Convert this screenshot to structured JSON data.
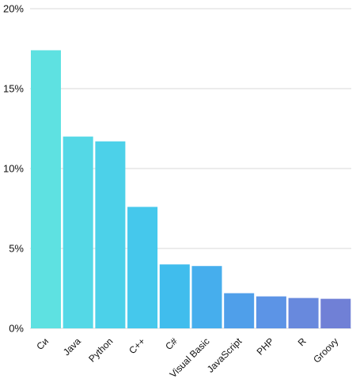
{
  "chart_data": {
    "type": "bar",
    "categories": [
      "Си",
      "Java",
      "Python",
      "C++",
      "C#",
      "Visual Basic",
      "JavaScript",
      "PHP",
      "R",
      "Groovy"
    ],
    "values": [
      17.4,
      12.0,
      11.7,
      7.6,
      4.0,
      3.9,
      2.2,
      2.0,
      1.9,
      1.85
    ],
    "colors": [
      "#5ee1e1",
      "#54d8e6",
      "#4cd1e9",
      "#45c8ec",
      "#40bded",
      "#46aeed",
      "#4f9fea",
      "#5c94e6",
      "#6889dd",
      "#7080d6"
    ],
    "ylim": [
      0,
      20
    ],
    "y_ticks": [
      0,
      5,
      10,
      15,
      20
    ],
    "y_tick_labels": [
      "0%",
      "5%",
      "10%",
      "15%",
      "20%"
    ],
    "grid": true,
    "legend": "none",
    "title": "",
    "xlabel": "",
    "ylabel": ""
  }
}
